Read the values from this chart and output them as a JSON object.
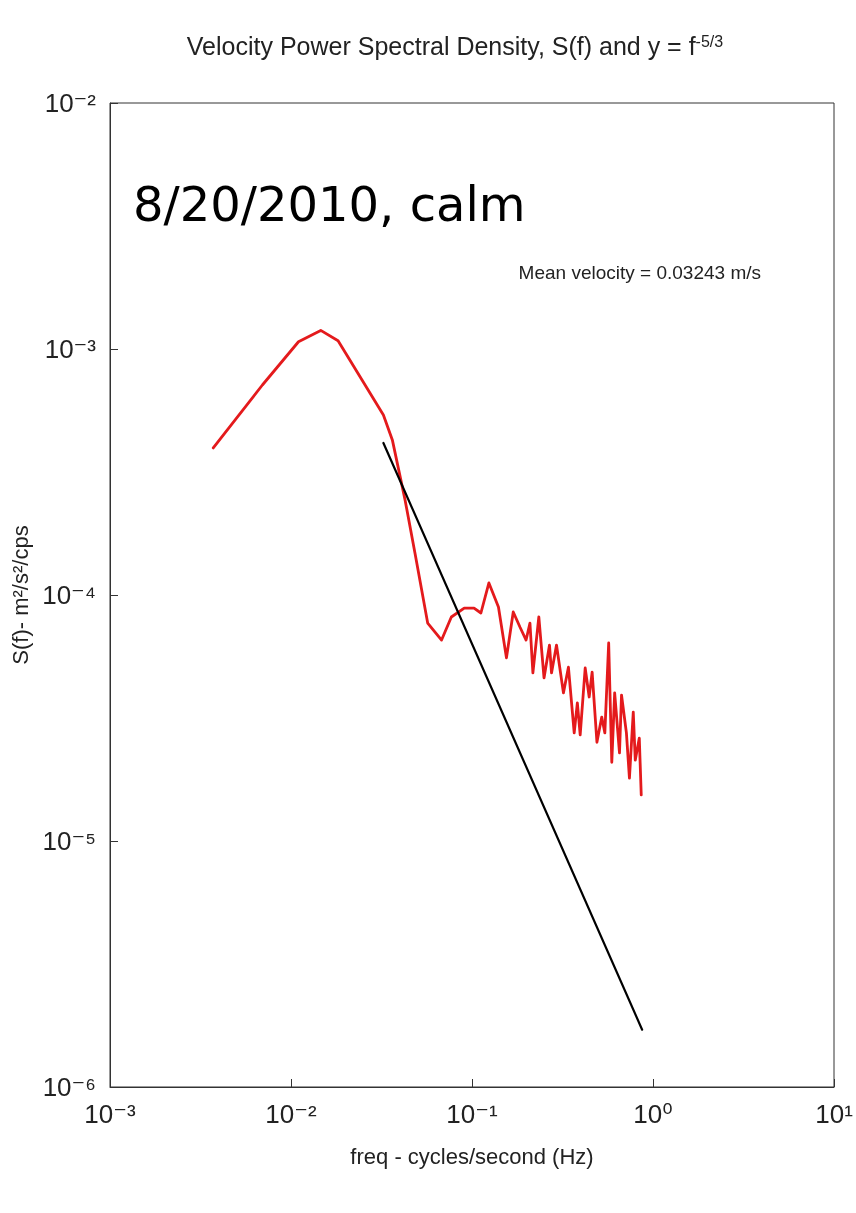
{
  "chart_data": {
    "type": "line",
    "title": "Velocity Power Spectral Density, S(f) and y = f$^{-5/3}$",
    "xlabel": "freq - cycles/second (Hz)",
    "ylabel": "S(f)- m²/s²/cps",
    "annotations": [
      "8/20/2010, calm",
      "Mean velocity = 0.03243 m/s"
    ],
    "log": "xy",
    "grid": false,
    "marker": "none",
    "line_style": "solid",
    "xlim": [
      0.001,
      10
    ],
    "ylim": [
      1e-06,
      0.01
    ],
    "xticks": [
      {
        "value": 0.001,
        "label": "10⁻³"
      },
      {
        "value": 0.01,
        "label": "10⁻²"
      },
      {
        "value": 0.1,
        "label": "10⁻¹"
      },
      {
        "value": 1,
        "label": "10⁰"
      },
      {
        "value": 10,
        "label": "10¹"
      }
    ],
    "yticks": [
      {
        "value": 1e-06,
        "label": "10⁻⁶"
      },
      {
        "value": 1e-05,
        "label": "10⁻⁵"
      },
      {
        "value": 0.0001,
        "label": "10⁻⁴"
      },
      {
        "value": 0.001,
        "label": "10⁻³"
      },
      {
        "value": 0.01,
        "label": "10⁻²"
      }
    ],
    "series": [
      {
        "color": "#e41a1c",
        "x": [
          0.00372,
          0.00695,
          0.011,
          0.0146,
          0.0182,
          0.0324,
          0.0363,
          0.0427,
          0.0484,
          0.0569,
          0.0679,
          0.0769,
          0.0906,
          0.1026,
          0.112,
          0.124,
          0.14,
          0.155,
          0.169,
          0.184,
          0.199,
          0.209,
          0.217,
          0.234,
          0.25,
          0.268,
          0.275,
          0.293,
          0.32,
          0.341,
          0.367,
          0.382,
          0.396,
          0.422,
          0.444,
          0.461,
          0.49,
          0.521,
          0.542,
          0.569,
          0.592,
          0.614,
          0.653,
          0.67,
          0.713,
          0.741,
          0.778,
          0.798,
          0.84,
          0.861
        ],
        "values": [
          0.000396,
          0.000714,
          0.00107,
          0.00119,
          0.00108,
          0.000539,
          0.000427,
          0.000243,
          0.000148,
          7.69e-05,
          6.56e-05,
          8.14e-05,
          8.85e-05,
          8.85e-05,
          8.45e-05,
          0.000112,
          8.94e-05,
          5.55e-05,
          8.53e-05,
          7.41e-05,
          6.56e-05,
          7.69e-05,
          4.82e-05,
          8.14e-05,
          4.6e-05,
          6.26e-05,
          4.82e-05,
          6.26e-05,
          4e-05,
          5.09e-05,
          2.75e-05,
          3.64e-05,
          2.7e-05,
          5.05e-05,
          3.85e-05,
          4.86e-05,
          2.52e-05,
          3.19e-05,
          2.75e-05,
          6.38e-05,
          2.09e-05,
          4e-05,
          2.28e-05,
          3.92e-05,
          2.75e-05,
          1.8e-05,
          3.34e-05,
          2.13e-05,
          2.62e-05,
          1.54e-05
        ]
      },
      {
        "color": "#000000",
        "x": [
          0.0324,
          0.871
        ],
        "values": [
          0.000415,
          1.71e-06
        ]
      }
    ]
  }
}
